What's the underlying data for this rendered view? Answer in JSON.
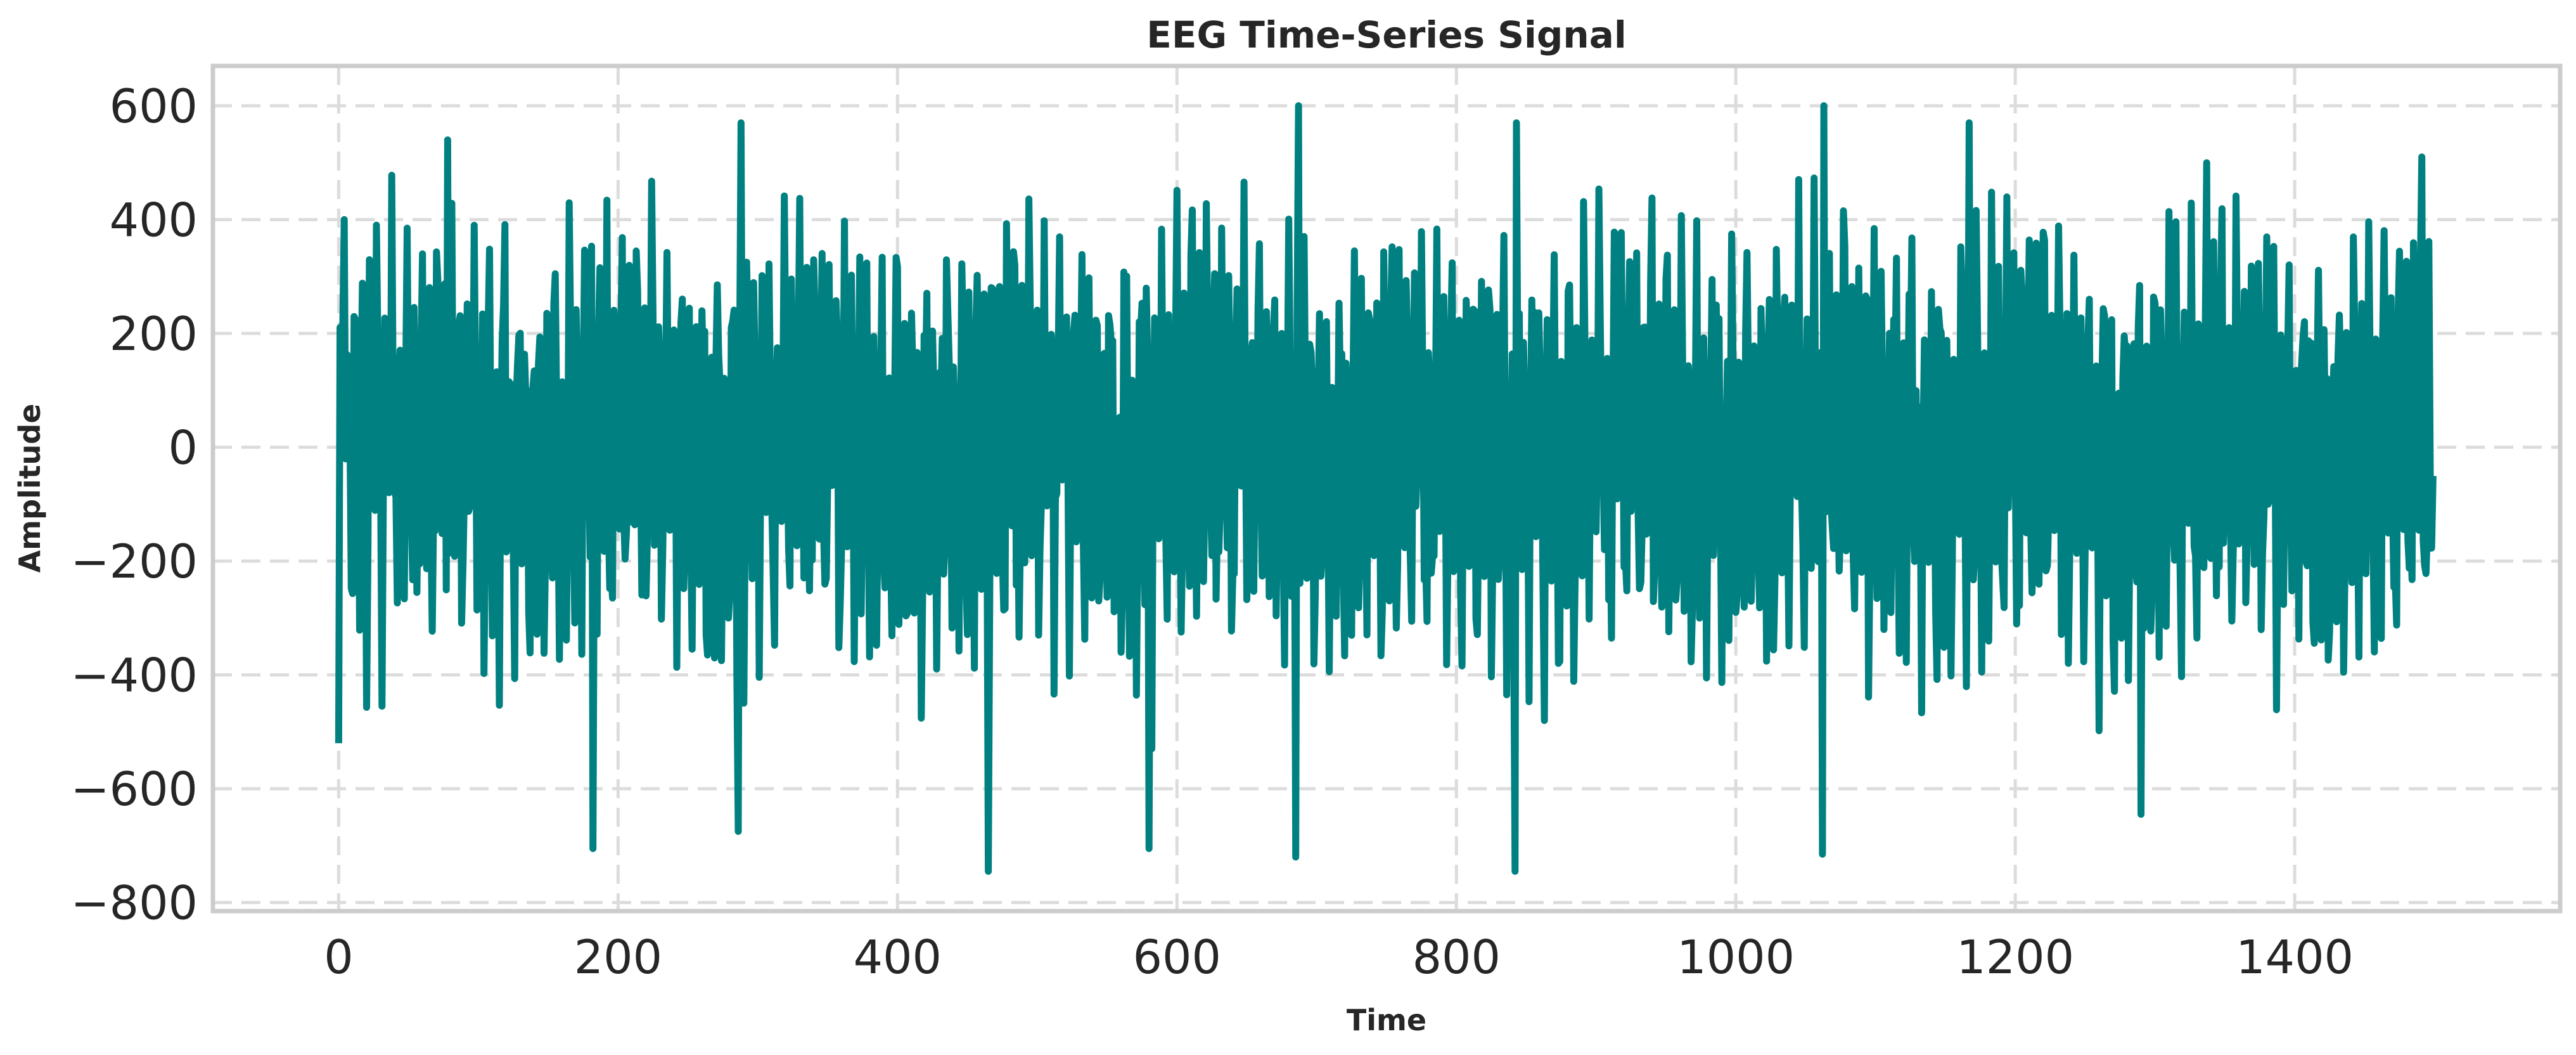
{
  "chart_data": {
    "type": "line",
    "title": "EEG Time-Series Signal",
    "xlabel": "Time",
    "ylabel": "Amplitude",
    "xlim": [
      -90,
      1590
    ],
    "ylim": [
      -815,
      670
    ],
    "x_ticks": [
      0,
      200,
      400,
      600,
      800,
      1000,
      1200,
      1400
    ],
    "y_ticks": [
      600,
      400,
      200,
      0,
      -200,
      -400,
      -600,
      -800
    ],
    "x_tick_labels": [
      "0",
      "200",
      "400",
      "600",
      "800",
      "1000",
      "1200",
      "1400"
    ],
    "y_tick_labels": [
      "600",
      "400",
      "200",
      "0",
      "−200",
      "−400",
      "−600",
      "−800"
    ],
    "grid": true,
    "color": "#008080",
    "series": [
      {
        "x_start": 0,
        "x_step": 1,
        "count": 1500,
        "envelope_max": 600,
        "envelope_min": -745,
        "peaks_notable": [
          {
            "x": 4,
            "y": 400
          },
          {
            "x": 78,
            "y": 540
          },
          {
            "x": 182,
            "y": 565
          },
          {
            "x": 288,
            "y": 570
          },
          {
            "x": 465,
            "y": 565
          },
          {
            "x": 687,
            "y": 600
          },
          {
            "x": 843,
            "y": 570
          },
          {
            "x": 1063,
            "y": 600
          },
          {
            "x": 1167,
            "y": 570
          },
          {
            "x": 1491,
            "y": 510
          }
        ],
        "troughs_notable": [
          {
            "x": 0,
            "y": -520
          },
          {
            "x": 182,
            "y": -705
          },
          {
            "x": 286,
            "y": -675
          },
          {
            "x": 465,
            "y": -745
          },
          {
            "x": 580,
            "y": -705
          },
          {
            "x": 685,
            "y": -720
          },
          {
            "x": 842,
            "y": -745
          },
          {
            "x": 1062,
            "y": -715
          },
          {
            "x": 1290,
            "y": -645
          }
        ]
      }
    ]
  }
}
